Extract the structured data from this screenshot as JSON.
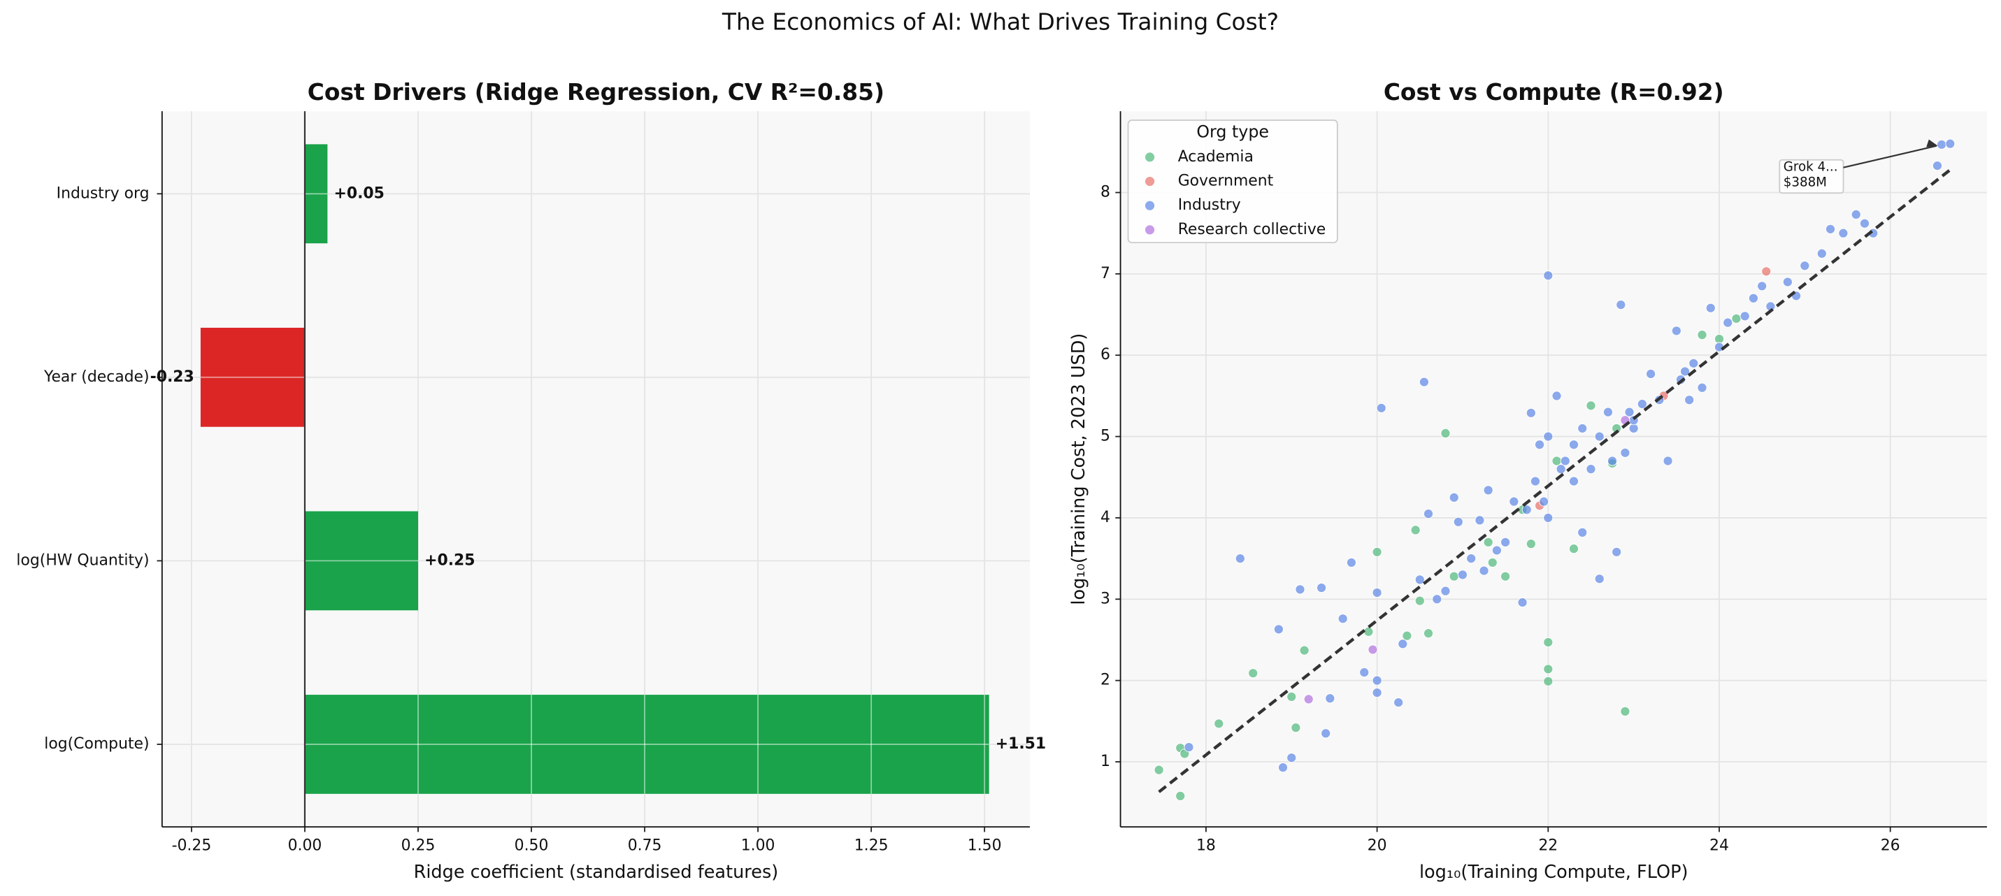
{
  "title": "The Economics of AI: What Drives Training Cost?",
  "chart_data": [
    {
      "type": "barh",
      "title": "Cost Drivers (Ridge Regression, CV R²=0.85)",
      "x_label": "Ridge coefficient (standardised features)",
      "categories": [
        "log(Compute)",
        "log(HW Quantity)",
        "Year (decade)",
        "Industry org"
      ],
      "values": [
        1.51,
        0.25,
        -0.23,
        0.05
      ],
      "value_labels": [
        "+1.51",
        "+0.25",
        "-0.23",
        "+0.05"
      ],
      "colors": [
        "#1aa34a",
        "#1aa34a",
        "#dc2626",
        "#1aa34a"
      ],
      "xlim": [
        -0.315,
        1.6
      ],
      "xticks": [
        -0.25,
        {
          "value": 0,
          "label": "0.00"
        },
        0.25,
        {
          "value": 0.5,
          "label": "0.50"
        },
        0.75,
        {
          "value": 1,
          "label": "1.00"
        },
        1.25,
        {
          "value": 1.5,
          "label": "1.50"
        }
      ],
      "grid": true,
      "zero_line": true
    },
    {
      "type": "scatter",
      "title": "Cost vs Compute (R=0.92)",
      "x_label": "log₁₀(Training Compute, FLOP)",
      "y_label": "log₁₀(Training Cost, 2023 USD)",
      "xlim": [
        17.0,
        27.13
      ],
      "ylim": [
        0.2,
        9.0
      ],
      "xticks": [
        18,
        20,
        22,
        24,
        26
      ],
      "yticks": [
        1,
        2,
        3,
        4,
        5,
        6,
        7,
        8
      ],
      "grid": true,
      "legend_title": "Org type",
      "legend_loc": "upper left",
      "series": [
        {
          "name": "Academia",
          "color": "#4fb87a",
          "x": [
            17.45,
            17.7,
            17.75,
            17.7,
            18.15,
            18.55,
            19.0,
            19.05,
            19.15,
            19.9,
            20.0,
            20.35,
            20.45,
            20.6,
            20.8,
            20.9,
            21.3,
            21.35,
            21.5,
            21.8,
            22.0,
            22.0,
            22.0,
            22.9,
            22.3,
            22.5,
            22.75,
            23.8,
            24.0,
            24.2,
            22.1,
            21.7,
            20.5,
            22.8
          ],
          "values": [
            0.9,
            1.17,
            1.1,
            0.58,
            1.47,
            2.09,
            1.8,
            1.42,
            2.37,
            2.6,
            3.58,
            2.55,
            3.85,
            2.58,
            5.04,
            3.28,
            3.7,
            3.45,
            3.28,
            3.68,
            2.47,
            2.14,
            1.99,
            1.62,
            3.62,
            5.38,
            4.67,
            6.25,
            6.2,
            6.45,
            4.7,
            4.1,
            2.98,
            5.1
          ]
        },
        {
          "name": "Government",
          "color": "#e8706a",
          "x": [
            24.55,
            23.35,
            21.9
          ],
          "values": [
            7.03,
            5.5,
            4.15
          ]
        },
        {
          "name": "Industry",
          "color": "#5b86e5",
          "x": [
            17.8,
            18.4,
            18.85,
            18.9,
            19.0,
            19.1,
            19.35,
            19.4,
            19.45,
            19.6,
            19.7,
            19.85,
            20.0,
            20.0,
            20.0,
            20.05,
            20.25,
            20.3,
            20.5,
            20.55,
            20.6,
            20.7,
            20.8,
            20.9,
            21.0,
            21.1,
            21.2,
            21.3,
            21.4,
            21.5,
            21.6,
            21.7,
            21.75,
            21.8,
            21.85,
            21.9,
            22.0,
            22.0,
            22.0,
            22.1,
            22.15,
            22.2,
            22.3,
            22.4,
            22.4,
            22.5,
            22.6,
            22.6,
            22.7,
            22.8,
            22.85,
            22.9,
            22.95,
            23.0,
            23.1,
            23.2,
            23.3,
            23.4,
            23.5,
            23.6,
            23.7,
            23.8,
            23.9,
            24.0,
            24.1,
            24.3,
            24.4,
            24.5,
            24.6,
            24.8,
            24.9,
            25.0,
            25.2,
            25.3,
            25.45,
            25.6,
            25.7,
            25.8,
            26.55,
            26.6,
            26.7,
            23.55,
            23.65,
            22.3,
            21.95,
            21.25,
            20.95,
            22.75,
            23.0
          ],
          "values": [
            1.18,
            3.5,
            2.63,
            0.93,
            1.05,
            3.12,
            3.14,
            1.35,
            1.78,
            2.76,
            3.45,
            2.1,
            1.85,
            2.0,
            3.08,
            5.35,
            1.73,
            2.45,
            3.24,
            5.67,
            4.05,
            3.0,
            3.1,
            4.25,
            3.3,
            3.5,
            3.97,
            4.34,
            3.6,
            3.7,
            4.2,
            2.96,
            4.1,
            5.29,
            4.45,
            4.9,
            4.0,
            5.0,
            6.98,
            5.5,
            4.6,
            4.7,
            4.9,
            3.82,
            5.1,
            4.6,
            5.0,
            3.25,
            5.3,
            3.58,
            6.62,
            4.8,
            5.3,
            5.1,
            5.4,
            5.77,
            5.45,
            4.7,
            6.3,
            5.8,
            5.9,
            5.6,
            6.58,
            6.1,
            6.4,
            6.48,
            6.7,
            6.85,
            6.6,
            6.9,
            6.73,
            7.1,
            7.25,
            7.55,
            7.5,
            7.73,
            7.62,
            7.5,
            8.33,
            8.59,
            8.6,
            5.7,
            5.45,
            4.45,
            4.2,
            3.35,
            3.95,
            4.7,
            5.2
          ]
        },
        {
          "name": "Research collective",
          "color": "#b070e0",
          "x": [
            19.2,
            19.95,
            22.9
          ],
          "values": [
            1.77,
            2.38,
            5.2
          ]
        }
      ],
      "fit_line": {
        "x": [
          17.45,
          26.7
        ],
        "y": [
          0.63,
          8.28
        ]
      },
      "annotation": {
        "lines": [
          "Grok 4...",
          "$388M"
        ],
        "x": 26.6,
        "y": 8.59
      }
    }
  ]
}
